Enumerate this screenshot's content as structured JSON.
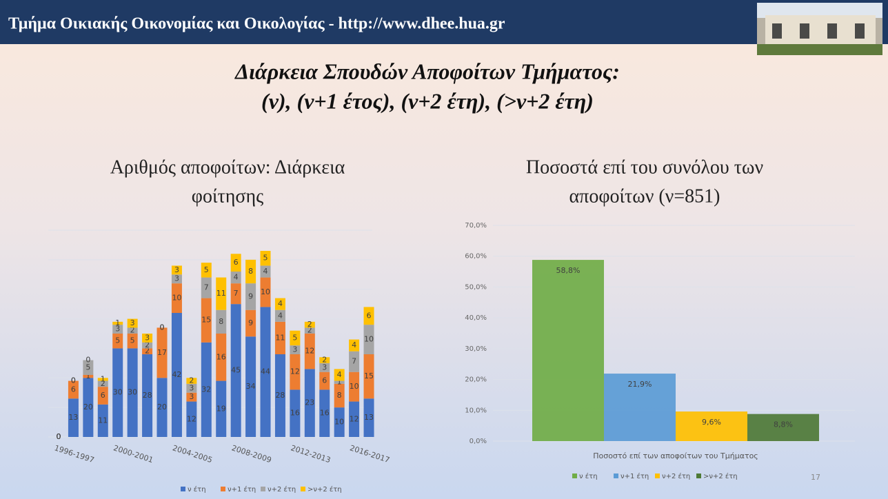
{
  "header": {
    "title": "Τμήμα Οικιακής Οικονομίας και Οικολογίας - http://www.dhee.hua.gr"
  },
  "slide_title": [
    "Διάρκεια Σπουδών Αποφοίτων Τμήματος:",
    "(ν), (ν+1 έτος), (ν+2 έτη), (>ν+2 έτη)"
  ],
  "page_number": "17",
  "chart_data": [
    {
      "type": "stacked_bar",
      "title": [
        "Αριθμός αποφοίτων: Διάρκεια",
        "φοίτησης"
      ],
      "categories": [
        "1996-1997",
        null,
        null,
        null,
        "2000-2001",
        null,
        null,
        null,
        "2004-2005",
        null,
        null,
        null,
        "2008-2009",
        null,
        null,
        null,
        "2012-2013",
        null,
        null,
        null,
        "2016-2017",
        null
      ],
      "series": [
        {
          "name": "ν έτη",
          "color": "#4472c4",
          "values": [
            0,
            13,
            20,
            11,
            30,
            30,
            28,
            20,
            42,
            12,
            32,
            19,
            45,
            34,
            44,
            28,
            16,
            23,
            16,
            10,
            12,
            13
          ]
        },
        {
          "name": "ν+1 έτη",
          "color": "#ed7d31",
          "values": [
            0,
            6,
            1,
            6,
            5,
            5,
            2,
            17,
            10,
            3,
            15,
            16,
            7,
            9,
            10,
            11,
            12,
            12,
            6,
            8,
            10,
            15
          ]
        },
        {
          "name": "ν+2 έτη",
          "color": "#a5a5a5",
          "values": [
            0,
            0,
            5,
            2,
            3,
            2,
            2,
            0,
            3,
            3,
            7,
            8,
            4,
            9,
            4,
            4,
            3,
            2,
            3,
            1,
            7,
            10
          ]
        },
        {
          "name": ">ν+2 έτη",
          "color": "#ffc000",
          "values": [
            0,
            0,
            0,
            1,
            1,
            3,
            3,
            0,
            3,
            2,
            5,
            11,
            6,
            8,
            5,
            4,
            5,
            2,
            2,
            4,
            4,
            6
          ]
        }
      ],
      "ylim": [
        0,
        70
      ],
      "yticks": [
        0,
        10,
        20,
        30,
        40,
        50,
        60,
        70
      ],
      "grid": true
    },
    {
      "type": "grouped_bar",
      "title": [
        "Ποσοστά επί του συνόλου των",
        "αποφοίτων (ν=851)"
      ],
      "categories": [
        "Ποσοστό επί των αποφοίτων  του Τμήματος"
      ],
      "series": [
        {
          "name": "ν έτη",
          "color": "#70ad47",
          "values": [
            58.8
          ],
          "value_labels": [
            "58,8%"
          ]
        },
        {
          "name": "ν+1 έτη",
          "color": "#5b9bd5",
          "values": [
            21.9
          ],
          "value_labels": [
            "21,9%"
          ]
        },
        {
          "name": "ν+2 έτη",
          "color": "#ffc000",
          "values": [
            9.6
          ],
          "value_labels": [
            "9,6%"
          ]
        },
        {
          "name": ">ν+2 έτη",
          "color": "#4e7a36",
          "values": [
            8.8
          ],
          "value_labels": [
            "8,8%"
          ]
        }
      ],
      "ylim": [
        0,
        70
      ],
      "yticks": [
        {
          "value": 0,
          "label": "0,0%"
        },
        {
          "value": 10,
          "label": "10,0%"
        },
        {
          "value": 20,
          "label": "20,0%"
        },
        {
          "value": 30,
          "label": "30,0%"
        },
        {
          "value": 40,
          "label": "40,0%"
        },
        {
          "value": 50,
          "label": "50,0%"
        },
        {
          "value": 60,
          "label": "60,0%"
        },
        {
          "value": 70,
          "label": "70,0%"
        }
      ],
      "grid": true
    }
  ]
}
